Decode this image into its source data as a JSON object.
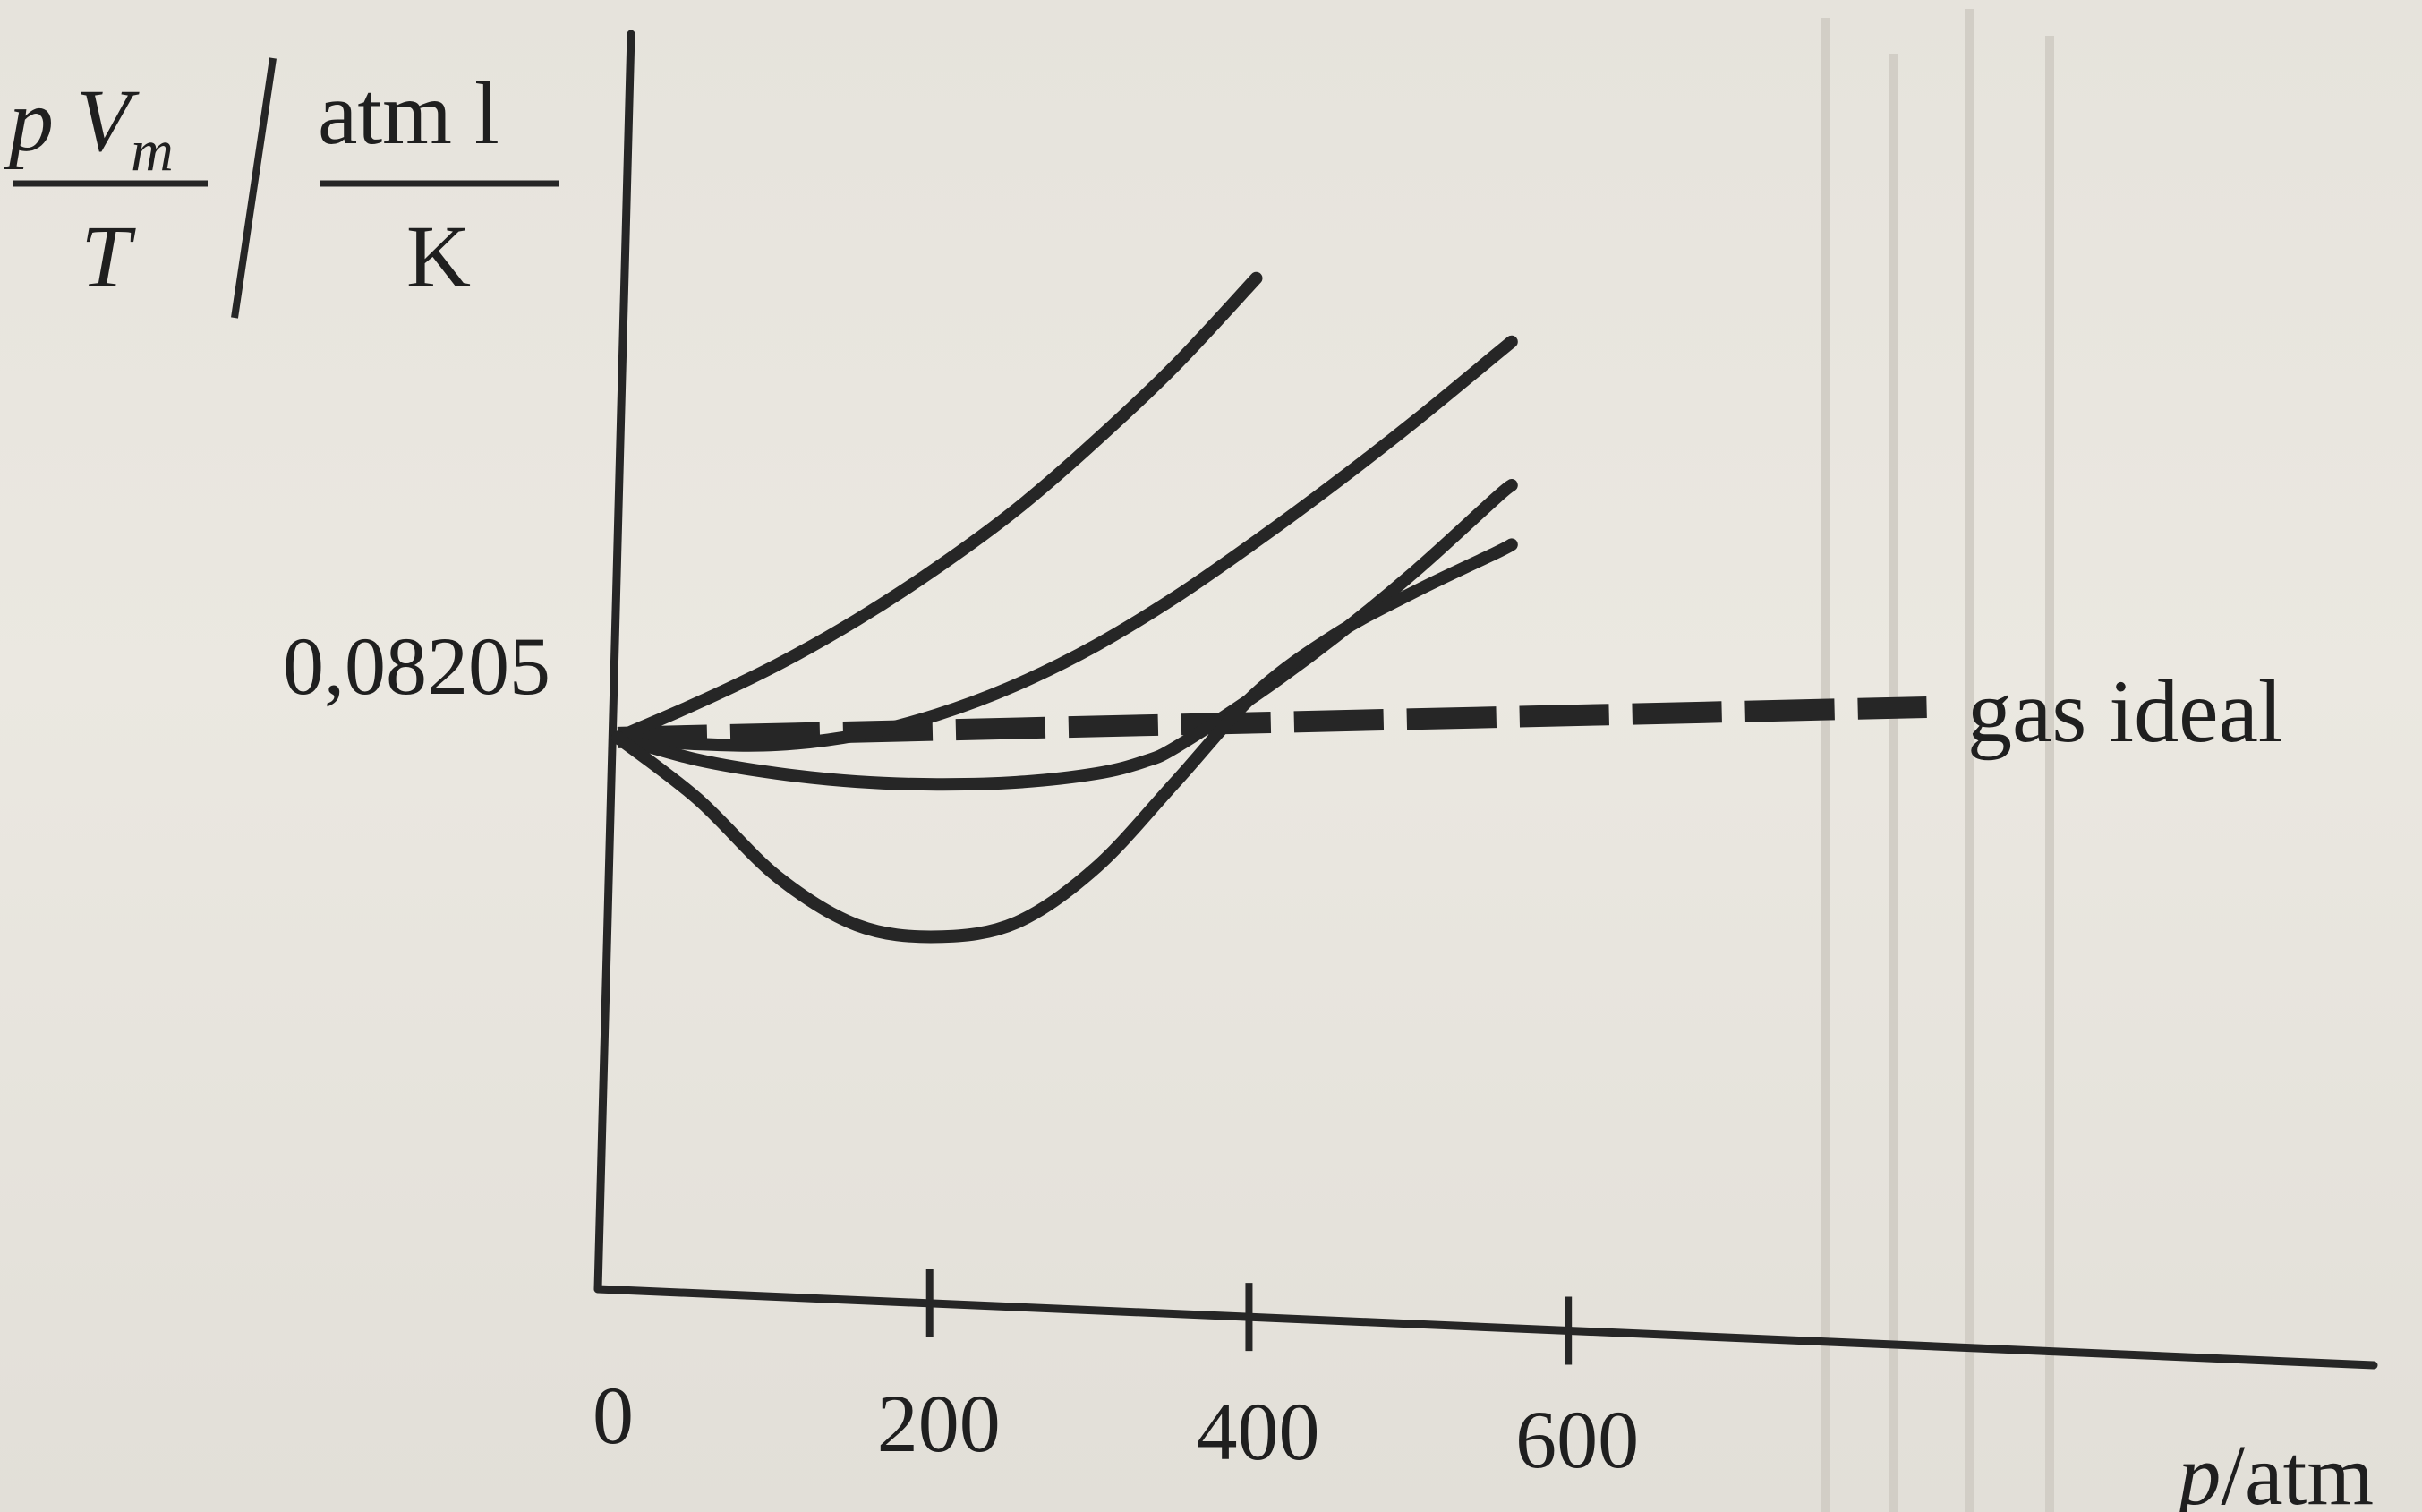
{
  "chart_data": {
    "type": "line",
    "ylabel": {
      "frac_left": {
        "num_var": "p",
        "num_sym": "V",
        "num_sub": "m",
        "den": "T"
      },
      "frac_right": {
        "num": "atm l",
        "den": "K"
      }
    },
    "y_reference": {
      "value": 0.08205,
      "label": "0,08205"
    },
    "xlabel": {
      "var": "p",
      "unit": "/atm"
    },
    "x_ticks": [
      {
        "value": 0,
        "label": "0"
      },
      {
        "value": 200,
        "label": "200"
      },
      {
        "value": 400,
        "label": "400"
      },
      {
        "value": 600,
        "label": "600"
      }
    ],
    "xlim": [
      0,
      1100
    ],
    "ylim": [
      0.0,
      0.19
    ],
    "series": [
      {
        "x": [
          0,
          50,
          100,
          150,
          200,
          250,
          300,
          350,
          400
        ],
        "y": [
          0.08205,
          0.0875,
          0.0935,
          0.1005,
          0.1085,
          0.1175,
          0.128,
          0.1395,
          0.1525
        ]
      },
      {
        "x": [
          0,
          50,
          100,
          150,
          200,
          250,
          300,
          350,
          400,
          450,
          500,
          550,
          560
        ],
        "y": [
          0.08205,
          0.0815,
          0.0818,
          0.0836,
          0.087,
          0.0918,
          0.098,
          0.1055,
          0.114,
          0.123,
          0.1325,
          0.1425,
          0.1445
        ]
      },
      {
        "x": [
          0,
          50,
          100,
          150,
          200,
          250,
          300,
          330,
          350,
          400,
          450,
          500,
          550,
          560
        ],
        "y": [
          0.08205,
          0.0792,
          0.0776,
          0.0768,
          0.0768,
          0.0775,
          0.0792,
          0.0812,
          0.0835,
          0.0915,
          0.1005,
          0.1105,
          0.1215,
          0.1235
        ]
      },
      {
        "x": [
          0,
          50,
          100,
          150,
          200,
          250,
          300,
          350,
          400,
          450,
          500,
          550,
          560
        ],
        "y": [
          0.08205,
          0.0735,
          0.0625,
          0.0558,
          0.0545,
          0.057,
          0.0655,
          0.0785,
          0.0918,
          0.1008,
          0.1075,
          0.1135,
          0.1148
        ]
      }
    ],
    "ideal_line": {
      "x": [
        0,
        820
      ],
      "y": [
        0.08205,
        0.0805
      ],
      "label": "gas ideal"
    },
    "grid": false,
    "legend": "none"
  }
}
